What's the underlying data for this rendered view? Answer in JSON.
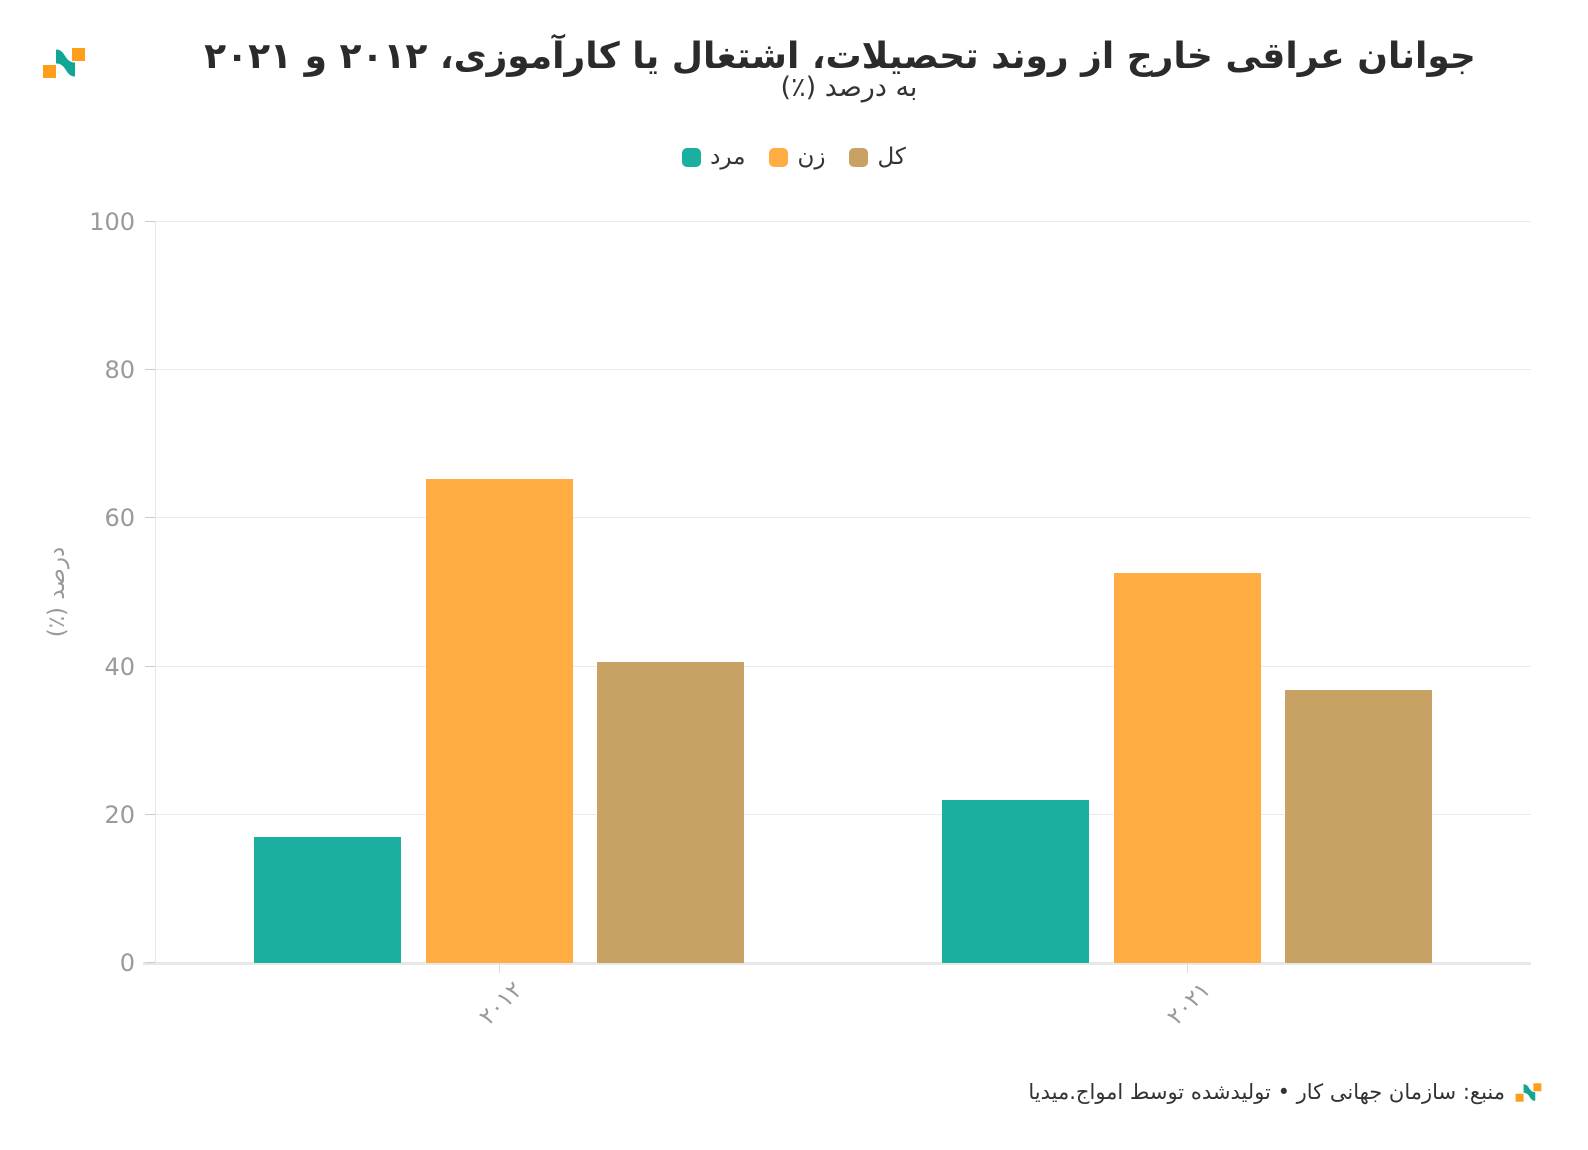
{
  "header": {
    "title": "جوانان عراقی خارج از روند تحصیلات، اشتغال یا کارآموزی، ٢٠١٢ و ٢٠٢١",
    "subtitle": "به درصد (٪)"
  },
  "brand": {
    "logo_orange": "#FF9E1A",
    "logo_teal": "#10A693"
  },
  "chart_data": {
    "type": "bar",
    "categories": [
      "٢٠١٢",
      "٢٠٢١"
    ],
    "series": [
      {
        "name": "مرد",
        "color": "#1BAFA0",
        "values": [
          17,
          22
        ]
      },
      {
        "name": "زن",
        "color": "#FFAC42",
        "values": [
          65.3,
          52.7
        ]
      },
      {
        "name": "کل",
        "color": "#C8A264",
        "values": [
          40.6,
          36.8
        ]
      }
    ],
    "title": "جوانان عراقی خارج از روند تحصیلات، اشتغال یا کارآموزی، ٢٠١٢ و ٢٠٢١",
    "xlabel": "",
    "ylabel": "درصد (٪)",
    "ylim": [
      0,
      100
    ],
    "yticks": [
      0,
      20,
      40,
      60,
      80,
      100
    ],
    "grid": true,
    "legend_position": "top"
  },
  "footer": {
    "source": "منبع: سازمان جهانی کار • تولیدشده توسط امواج.میدیا"
  }
}
